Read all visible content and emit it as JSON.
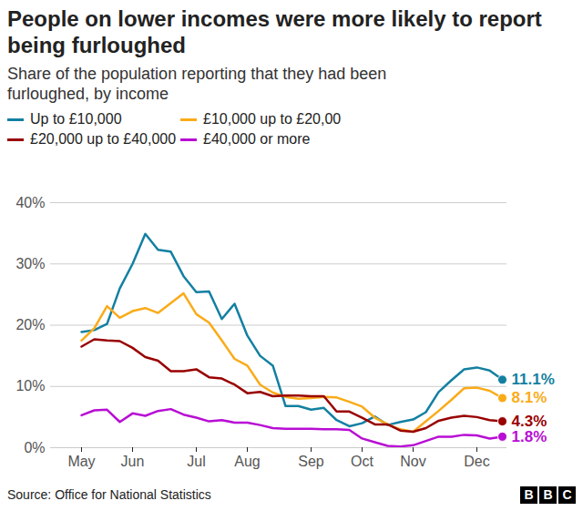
{
  "chart_data": {
    "type": "line",
    "title": "People on lower incomes were more likely to report being furloughed",
    "subtitle": "Share of the population reporting that they had been furloughed, by income",
    "source": "Source: Office for National Statistics",
    "logo": "BBC",
    "categories": [
      "May",
      null,
      null,
      null,
      "Jun",
      null,
      null,
      null,
      null,
      "Jul",
      null,
      null,
      null,
      "Aug",
      null,
      null,
      null,
      null,
      "Sep",
      null,
      null,
      null,
      "Oct",
      null,
      null,
      null,
      "Nov",
      null,
      null,
      null,
      null,
      "Dec",
      null,
      null
    ],
    "series": [
      {
        "name": "Up to £10,000",
        "color": "#1380A1",
        "values": [
          18.9,
          19.2,
          20.2,
          26,
          30,
          34.9,
          32.3,
          32,
          28,
          25.4,
          25.5,
          21,
          23.5,
          18.3,
          15,
          13.4,
          6.8,
          6.8,
          6.2,
          6.5,
          4.5,
          3.5,
          4,
          5.1,
          3.7,
          4.2,
          4.6,
          5.8,
          9.1,
          11,
          12.8,
          13.1,
          12.6,
          11.1
        ],
        "value_labels": [
          null,
          null,
          null,
          null,
          null,
          null,
          null,
          null,
          null,
          null,
          null,
          null,
          null,
          null,
          null,
          null,
          null,
          null,
          null,
          null,
          null,
          null,
          null,
          null,
          null,
          null,
          null,
          null,
          null,
          null,
          null,
          null,
          null,
          "11.1%"
        ]
      },
      {
        "name": "£10,000 up to £20,00",
        "color": "#FAAB18",
        "values": [
          17.5,
          19.5,
          23.1,
          21.2,
          22.3,
          22.8,
          22,
          23.6,
          25.2,
          21.8,
          20.4,
          17.5,
          14.5,
          13.4,
          10.3,
          9,
          8.3,
          8,
          8.1,
          8.3,
          8.2,
          7.5,
          6.7,
          4.9,
          3.8,
          3,
          2.6,
          4.3,
          6,
          7.8,
          9.7,
          9.8,
          9.3,
          8.1
        ],
        "value_labels": [
          null,
          null,
          null,
          null,
          null,
          null,
          null,
          null,
          null,
          null,
          null,
          null,
          null,
          null,
          null,
          null,
          null,
          null,
          null,
          null,
          null,
          null,
          null,
          null,
          null,
          null,
          null,
          null,
          null,
          null,
          null,
          null,
          null,
          "8.1%"
        ]
      },
      {
        "name": "£20,000 up to £40,000",
        "color": "#990000",
        "values": [
          16.5,
          17.7,
          17.5,
          17.4,
          16.3,
          14.8,
          14.2,
          12.5,
          12.5,
          12.8,
          11.5,
          11.3,
          10.3,
          8.9,
          9.1,
          8.4,
          8.5,
          8.5,
          8.4,
          8.4,
          5.9,
          5.9,
          4.9,
          3.8,
          3.8,
          2.8,
          2.6,
          3.2,
          4.4,
          4.9,
          5.2,
          5,
          4.5,
          4.3
        ],
        "value_labels": [
          null,
          null,
          null,
          null,
          null,
          null,
          null,
          null,
          null,
          null,
          null,
          null,
          null,
          null,
          null,
          null,
          null,
          null,
          null,
          null,
          null,
          null,
          null,
          null,
          null,
          null,
          null,
          null,
          null,
          null,
          null,
          null,
          null,
          "4.3%"
        ]
      },
      {
        "name": "£40,000 or more",
        "color": "#B80DD4",
        "values": [
          5.3,
          6.1,
          6.2,
          4.2,
          5.6,
          5.2,
          6,
          6.3,
          5.4,
          4.9,
          4.3,
          4.5,
          4.1,
          4.1,
          3.7,
          3.2,
          3.1,
          3.1,
          3.1,
          3,
          3,
          2.9,
          1.5,
          0.9,
          0.3,
          0.2,
          0.4,
          1.1,
          1.8,
          1.8,
          2.1,
          2,
          1.5,
          1.8
        ],
        "value_labels": [
          null,
          null,
          null,
          null,
          null,
          null,
          null,
          null,
          null,
          null,
          null,
          null,
          null,
          null,
          null,
          null,
          null,
          null,
          null,
          null,
          null,
          null,
          null,
          null,
          null,
          null,
          null,
          null,
          null,
          null,
          null,
          null,
          null,
          "1.8%"
        ]
      }
    ],
    "ylim": [
      0,
      40
    ],
    "yticks": [
      {
        "value": 0,
        "label": "0%"
      },
      {
        "value": 10,
        "label": "10%"
      },
      {
        "value": 20,
        "label": "20%"
      },
      {
        "value": 30,
        "label": "30%"
      },
      {
        "value": 40,
        "label": "40%"
      }
    ],
    "grid": true,
    "legend": "top",
    "data_labels": true
  }
}
